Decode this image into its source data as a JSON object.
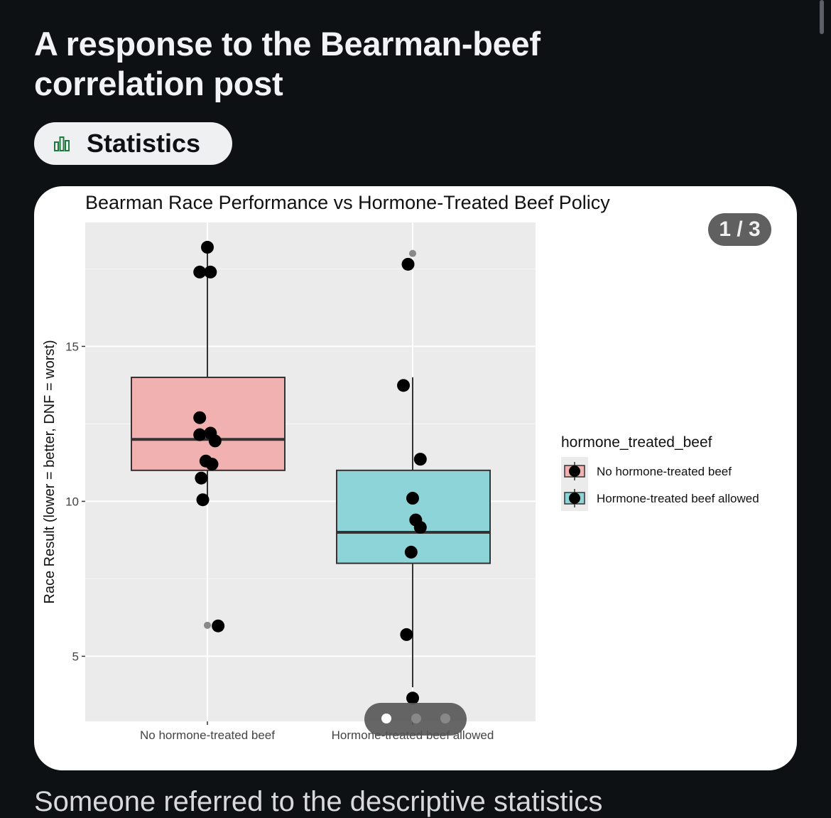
{
  "post": {
    "title": "A response to the Bearman-beef correlation post",
    "tag": {
      "label": "Statistics",
      "icon": "bar-chart-icon",
      "icon_color": "#1e7a3c"
    },
    "carousel": {
      "counter": "1 / 3",
      "current": 1,
      "total": 3
    },
    "body_start": "Someone referred to the descriptive statistics"
  },
  "chart_data": {
    "type": "box",
    "title": "Bearman Race Performance vs Hormone-Treated Beef Policy",
    "xlabel": "",
    "ylabel": "Race Result (lower = better, DNF = worst)",
    "ylim": [
      2.9,
      19
    ],
    "yticks": [
      5,
      10,
      15
    ],
    "ytick_labels": [
      "5",
      "10",
      "15"
    ],
    "grid": true,
    "categories": [
      "No hormone-treated beef",
      "Hormone-treated beef allowed"
    ],
    "legend": {
      "title": "hormone_treated_beef",
      "position": "right",
      "entries": [
        "No hormone-treated beef",
        "Hormone-treated beef allowed"
      ]
    },
    "series": [
      {
        "name": "No hormone-treated beef",
        "color": "#f0b1b0",
        "box": {
          "q1": 11,
          "median": 12,
          "q3": 14,
          "whisker_low": 10,
          "whisker_high": 18
        },
        "outliers": [
          6.0
        ],
        "points": [
          [
            0.0,
            18.2
          ],
          [
            -0.05,
            17.4
          ],
          [
            0.02,
            17.4
          ],
          [
            -0.05,
            12.7
          ],
          [
            -0.05,
            12.15
          ],
          [
            0.02,
            12.2
          ],
          [
            0.05,
            11.95
          ],
          [
            -0.01,
            11.3
          ],
          [
            0.03,
            11.2
          ],
          [
            -0.04,
            10.75
          ],
          [
            -0.03,
            10.05
          ],
          [
            0.07,
            5.98
          ]
        ]
      },
      {
        "name": "Hormone-treated beef allowed",
        "color": "#8dd4d9",
        "box": {
          "q1": 8,
          "median": 9,
          "q3": 11,
          "whisker_low": 4,
          "whisker_high": 14
        },
        "outliers": [
          18.0
        ],
        "points": [
          [
            -0.03,
            17.65
          ],
          [
            -0.06,
            13.74
          ],
          [
            0.05,
            11.36
          ],
          [
            0.0,
            10.1
          ],
          [
            0.02,
            9.4
          ],
          [
            0.05,
            9.16
          ],
          [
            -0.01,
            8.36
          ],
          [
            -0.04,
            5.7
          ],
          [
            0.0,
            3.65
          ]
        ]
      }
    ]
  }
}
